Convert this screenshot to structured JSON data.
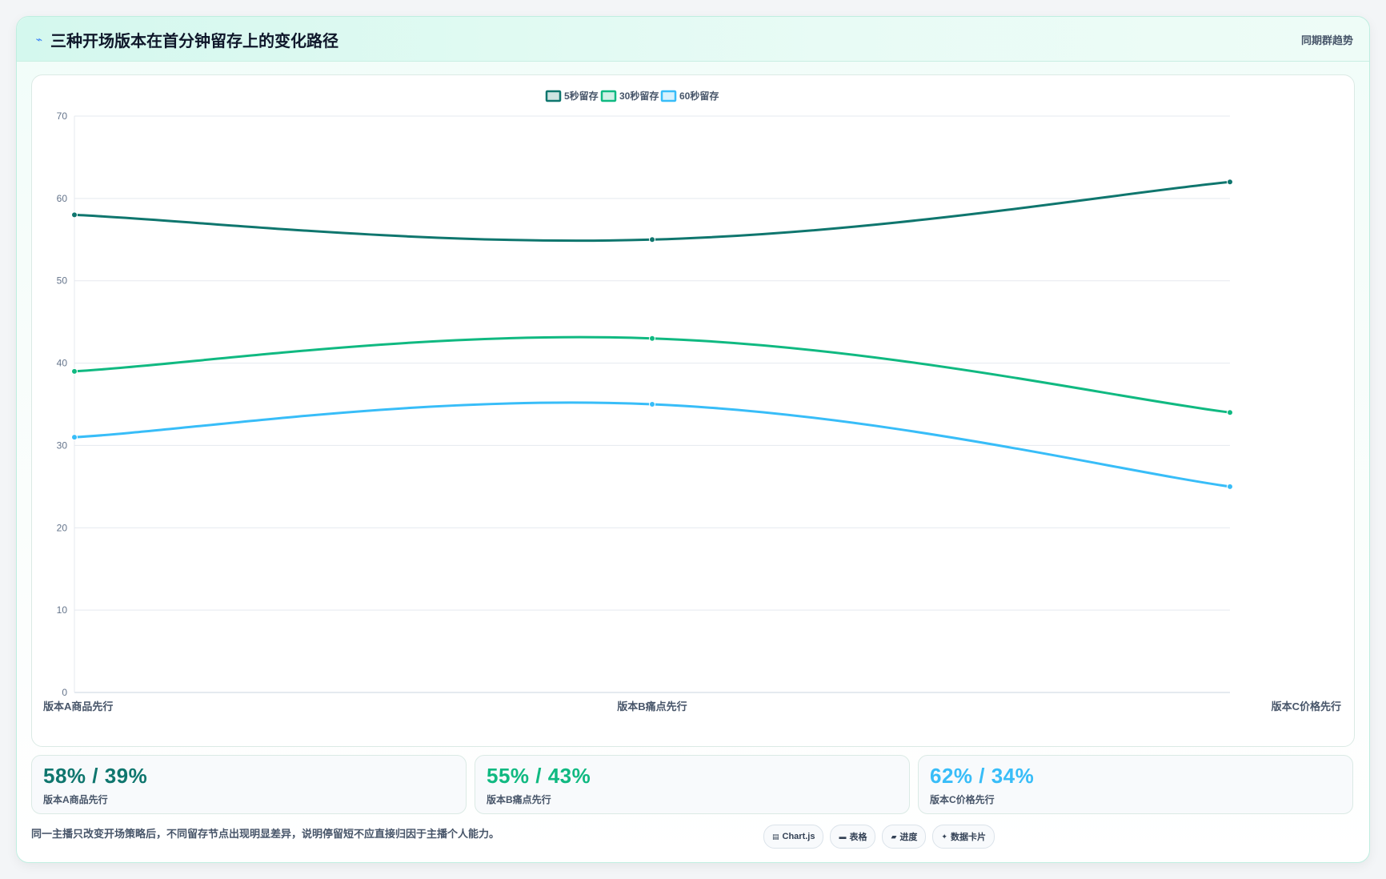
{
  "header": {
    "icon": "trend-icon",
    "title": "三种开场版本在首分钟留存上的变化路径",
    "right_label": "同期群趋势"
  },
  "chart_data": {
    "type": "line",
    "categories": [
      "版本A商品先行",
      "版本B痛点先行",
      "版本C价格先行"
    ],
    "series": [
      {
        "name": "5秒留存",
        "values": [
          58,
          55,
          62
        ],
        "color": "#0f766e"
      },
      {
        "name": "30秒留存",
        "values": [
          39,
          43,
          34
        ],
        "color": "#10b981"
      },
      {
        "name": "60秒留存",
        "values": [
          31,
          35,
          25
        ],
        "color": "#38bdf8"
      }
    ],
    "ylim": [
      0,
      70
    ],
    "yticks": [
      "0",
      "10",
      "20",
      "30",
      "40",
      "50",
      "60",
      "70"
    ],
    "grid": true,
    "legend": "top-center",
    "title": "",
    "xlabel": "",
    "ylabel": ""
  },
  "stats": [
    {
      "value": "58% / 39%",
      "label": "版本A商品先行",
      "color": "#0f766e"
    },
    {
      "value": "55% / 43%",
      "label": "版本B痛点先行",
      "color": "#10b981"
    },
    {
      "value": "62% / 34%",
      "label": "版本C价格先行",
      "color": "#38bdf8"
    }
  ],
  "footnote": "同一主播只改变开场策略后，不同留存节点出现明显差异，说明停留短不应直接归因于主播个人能力。",
  "tags": [
    {
      "icon": "chart-icon",
      "glyph": "▤",
      "label": "Chart.js"
    },
    {
      "icon": "table-icon",
      "glyph": "▬",
      "label": "表格"
    },
    {
      "icon": "progress-icon",
      "glyph": "▰",
      "label": "进度"
    },
    {
      "icon": "card-icon",
      "glyph": "✦",
      "label": "数据卡片"
    }
  ]
}
